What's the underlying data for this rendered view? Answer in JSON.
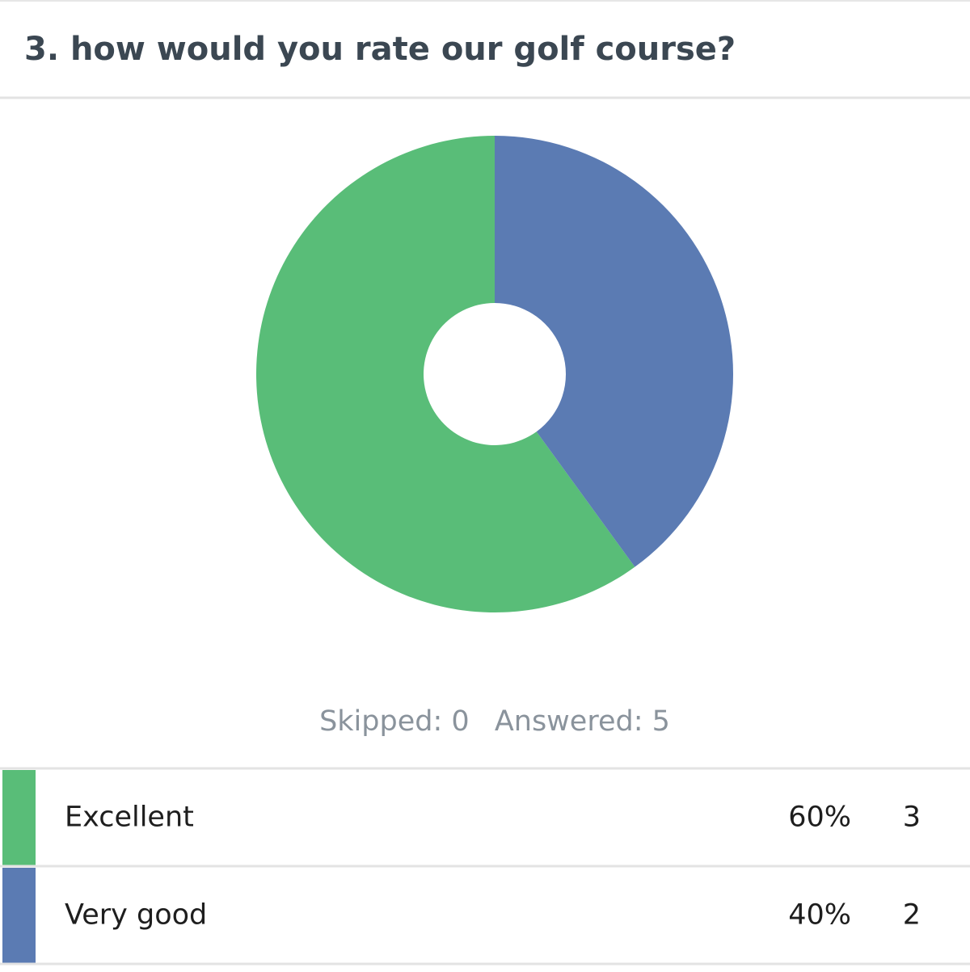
{
  "chart_data": {
    "type": "pie",
    "donut": true,
    "title": "3. how would you rate our golf course?",
    "categories": [
      "Excellent",
      "Very good"
    ],
    "values": [
      60,
      40
    ],
    "value_labels": [
      "60%",
      "40%"
    ],
    "counts": [
      3,
      2
    ],
    "colors": [
      "#59bd78",
      "#5b7bb3"
    ],
    "summary": [
      {
        "label": "Skipped:",
        "value": 0
      },
      {
        "label": "Answered:",
        "value": 5
      }
    ]
  }
}
